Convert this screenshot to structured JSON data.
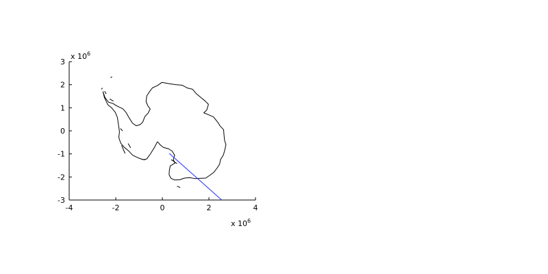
{
  "chart_data": {
    "type": "line",
    "title": "",
    "xlabel": "",
    "ylabel": "",
    "xlim": [
      -4,
      4
    ],
    "ylim": [
      -3,
      3
    ],
    "xticks": [
      -4,
      -2,
      0,
      2,
      4
    ],
    "yticks": [
      -3,
      -2,
      -1,
      0,
      1,
      2,
      3
    ],
    "xtick_labels": [
      "-4",
      "-2",
      "0",
      "2",
      "4"
    ],
    "ytick_labels": [
      "-3",
      "-2",
      "-1",
      "0",
      "1",
      "2",
      "3"
    ],
    "x_multiplier": {
      "base": "x 10",
      "exponent": "6"
    },
    "y_multiplier": {
      "base": "x 10",
      "exponent": "6"
    },
    "grid": false,
    "box": false,
    "series": [
      {
        "color": "#000000",
        "kind": "coastline",
        "points": [
          [
            -0.21,
            -0.47
          ],
          [
            -0.08,
            -0.62
          ],
          [
            0.05,
            -0.72
          ],
          [
            0.27,
            -0.78
          ],
          [
            0.42,
            -0.88
          ],
          [
            0.53,
            -1.06
          ],
          [
            0.47,
            -1.24
          ],
          [
            0.54,
            -1.4
          ],
          [
            0.34,
            -1.52
          ],
          [
            0.3,
            -1.72
          ],
          [
            0.29,
            -1.9
          ],
          [
            0.37,
            -2.06
          ],
          [
            0.52,
            -2.13
          ],
          [
            0.75,
            -2.12
          ],
          [
            0.95,
            -2.05
          ],
          [
            1.18,
            -2.03
          ],
          [
            1.4,
            -2.07
          ],
          [
            1.6,
            -2.06
          ],
          [
            1.86,
            -2.05
          ],
          [
            2.05,
            -1.92
          ],
          [
            2.21,
            -1.8
          ],
          [
            2.36,
            -1.6
          ],
          [
            2.46,
            -1.44
          ],
          [
            2.5,
            -1.24
          ],
          [
            2.62,
            -1.05
          ],
          [
            2.68,
            -0.84
          ],
          [
            2.73,
            -0.6
          ],
          [
            2.67,
            -0.4
          ],
          [
            2.65,
            -0.2
          ],
          [
            2.63,
            0.05
          ],
          [
            2.48,
            0.21
          ],
          [
            2.38,
            0.37
          ],
          [
            2.2,
            0.6
          ],
          [
            1.98,
            0.7
          ],
          [
            1.78,
            0.78
          ],
          [
            1.91,
            0.91
          ],
          [
            1.98,
            1.15
          ],
          [
            1.84,
            1.29
          ],
          [
            1.66,
            1.44
          ],
          [
            1.45,
            1.62
          ],
          [
            1.3,
            1.8
          ],
          [
            1.07,
            1.86
          ],
          [
            0.85,
            1.98
          ],
          [
            0.58,
            2.0
          ],
          [
            0.26,
            2.05
          ],
          [
            -0.02,
            2.1
          ],
          [
            -0.2,
            1.97
          ],
          [
            -0.43,
            1.86
          ],
          [
            -0.55,
            1.7
          ],
          [
            -0.67,
            1.51
          ],
          [
            -0.7,
            1.27
          ],
          [
            -0.62,
            1.08
          ],
          [
            -0.52,
            0.95
          ],
          [
            -0.61,
            0.77
          ],
          [
            -0.75,
            0.62
          ],
          [
            -0.84,
            0.38
          ],
          [
            -0.95,
            0.27
          ],
          [
            -1.12,
            0.22
          ],
          [
            -1.28,
            0.33
          ],
          [
            -1.43,
            0.57
          ],
          [
            -1.56,
            0.8
          ],
          [
            -1.7,
            0.96
          ],
          [
            -1.92,
            1.06
          ],
          [
            -2.13,
            1.19
          ],
          [
            -2.31,
            1.24
          ],
          [
            -2.46,
            1.44
          ],
          [
            -2.55,
            1.7
          ],
          [
            -2.49,
            1.45
          ],
          [
            -2.34,
            1.13
          ],
          [
            -2.18,
            1.0
          ],
          [
            -2.02,
            0.8
          ],
          [
            -1.93,
            0.58
          ],
          [
            -1.88,
            0.24
          ],
          [
            -1.84,
            -0.05
          ],
          [
            -1.87,
            -0.28
          ],
          [
            -1.79,
            -0.53
          ],
          [
            -1.65,
            -0.7
          ],
          [
            -1.45,
            -0.87
          ],
          [
            -1.27,
            -1.06
          ],
          [
            -1.02,
            -1.18
          ],
          [
            -0.82,
            -1.25
          ],
          [
            -0.67,
            -1.22
          ],
          [
            -0.5,
            -0.98
          ],
          [
            -0.34,
            -0.72
          ],
          [
            -0.21,
            -0.47
          ]
        ]
      },
      {
        "color": "#000000",
        "kind": "islands",
        "points": [
          [
            -2.62,
            1.8
          ],
          [
            -2.57,
            1.86
          ],
          [
            -2.48,
            1.72
          ],
          [
            -2.41,
            1.6
          ],
          [
            -2.26,
            1.38
          ],
          [
            -2.1,
            1.29
          ],
          [
            -2.22,
            2.3
          ],
          [
            -2.16,
            2.35
          ],
          [
            -1.8,
            0.1
          ],
          [
            -1.71,
            0.0
          ],
          [
            -1.47,
            -0.55
          ],
          [
            -1.36,
            -0.74
          ],
          [
            -0.92,
            -1.22
          ],
          [
            -0.74,
            -1.26
          ],
          [
            0.63,
            -1.42
          ],
          [
            0.38,
            -1.25
          ],
          [
            0.63,
            -2.4
          ],
          [
            0.77,
            -2.46
          ],
          [
            -1.75,
            -0.63
          ],
          [
            -1.6,
            -0.98
          ]
        ]
      },
      {
        "color": "#1f2dff",
        "kind": "line",
        "points": [
          [
            0.3,
            -0.98
          ],
          [
            2.55,
            -3.0
          ]
        ]
      }
    ]
  }
}
